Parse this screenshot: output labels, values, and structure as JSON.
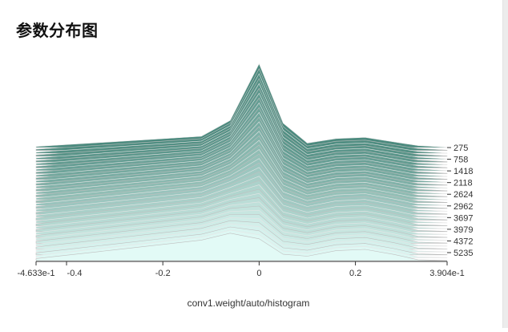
{
  "title": "参数分布图",
  "caption": "conv1.weight/auto/histogram",
  "chart_data": {
    "type": "area",
    "subtype": "ridgeline-histogram",
    "x_min": -0.4633,
    "x_max": 0.3904,
    "x_ticks": [
      {
        "value": -0.4633,
        "label": "-4.633e-1"
      },
      {
        "value": -0.4,
        "label": "-0.4"
      },
      {
        "value": -0.2,
        "label": "-0.2"
      },
      {
        "value": 0,
        "label": "0"
      },
      {
        "value": 0.2,
        "label": "0.2"
      },
      {
        "value": 0.3904,
        "label": "3.904e-1"
      }
    ],
    "step_labels": [
      "275",
      "758",
      "1418",
      "2118",
      "2624",
      "2962",
      "3697",
      "3979",
      "4372",
      "5235"
    ],
    "num_steps": 40,
    "colors": {
      "back": "#4b8a7e",
      "front": "#e2faf6",
      "grid": "#bdbdbd",
      "line": "#f2f2f2"
    }
  }
}
